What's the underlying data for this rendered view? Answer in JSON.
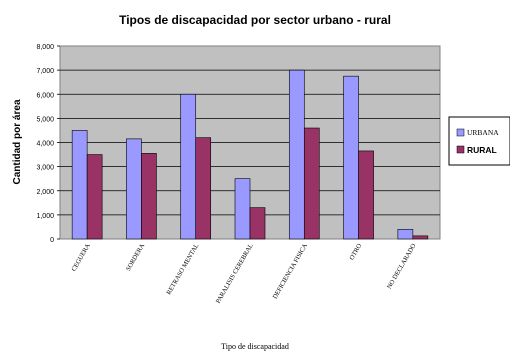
{
  "chart_data": {
    "type": "bar",
    "title": "Tipos de discapacidad por sector urbano - rural",
    "xlabel": "Tipo de discapacidad",
    "ylabel": "Cantidad por área",
    "ylim": [
      0,
      8000
    ],
    "yticks": [
      0,
      1000,
      2000,
      3000,
      4000,
      5000,
      6000,
      7000,
      8000
    ],
    "ytick_labels": [
      "0",
      "1,000",
      "2,000",
      "3,000",
      "4,000",
      "5,000",
      "6,000",
      "7,000",
      "8,000"
    ],
    "grid": true,
    "legend_position": "right",
    "categories": [
      "CEGUERA",
      "SORDERA",
      "RETRASO MENTAL",
      "PARALISIS CEREBRAL",
      "DEFICIENCIA FISICA",
      "OTRO",
      "NO DECLARADO"
    ],
    "series": [
      {
        "name": "URBANA",
        "color": "#9999ff",
        "values": [
          4500,
          4150,
          6000,
          2500,
          7000,
          6750,
          400
        ]
      },
      {
        "name": "RURAL",
        "color": "#993366",
        "values": [
          3500,
          3550,
          4200,
          1300,
          4600,
          3650,
          130
        ]
      }
    ],
    "plot_background": "#c0c0c0"
  }
}
